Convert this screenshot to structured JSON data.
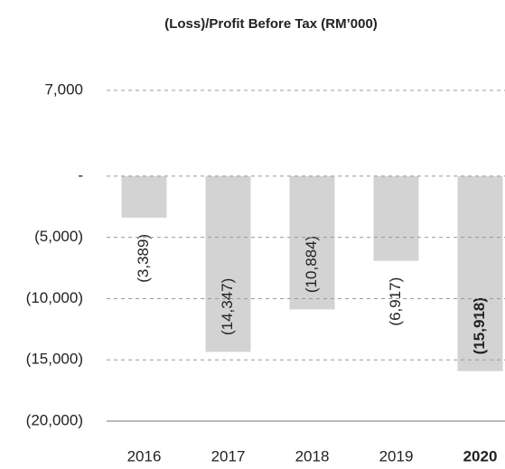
{
  "chart_data": {
    "type": "bar",
    "title": "(Loss)/Profit Before Tax (RM’000)",
    "categories": [
      "2016",
      "2017",
      "2018",
      "2019",
      "2020"
    ],
    "values": [
      -3389,
      -14347,
      -10884,
      -6917,
      -15918
    ],
    "value_labels": [
      "(3,389)",
      "(14,347)",
      "(10,884)",
      "(6,917)",
      "(15,918)"
    ],
    "color": "#d3d3d3",
    "highlight_index": 4,
    "ylim": [
      -20000,
      7000
    ],
    "yticks": [
      {
        "value": -20000,
        "label": "(20,000)"
      },
      {
        "value": -15000,
        "label": "(15,000)"
      },
      {
        "value": -10000,
        "label": "(10,000)"
      },
      {
        "value": -5000,
        "label": "(5,000)"
      },
      {
        "value": 0,
        "label": "-"
      },
      {
        "value": 7000,
        "label": "7,000"
      }
    ],
    "grid": true
  }
}
